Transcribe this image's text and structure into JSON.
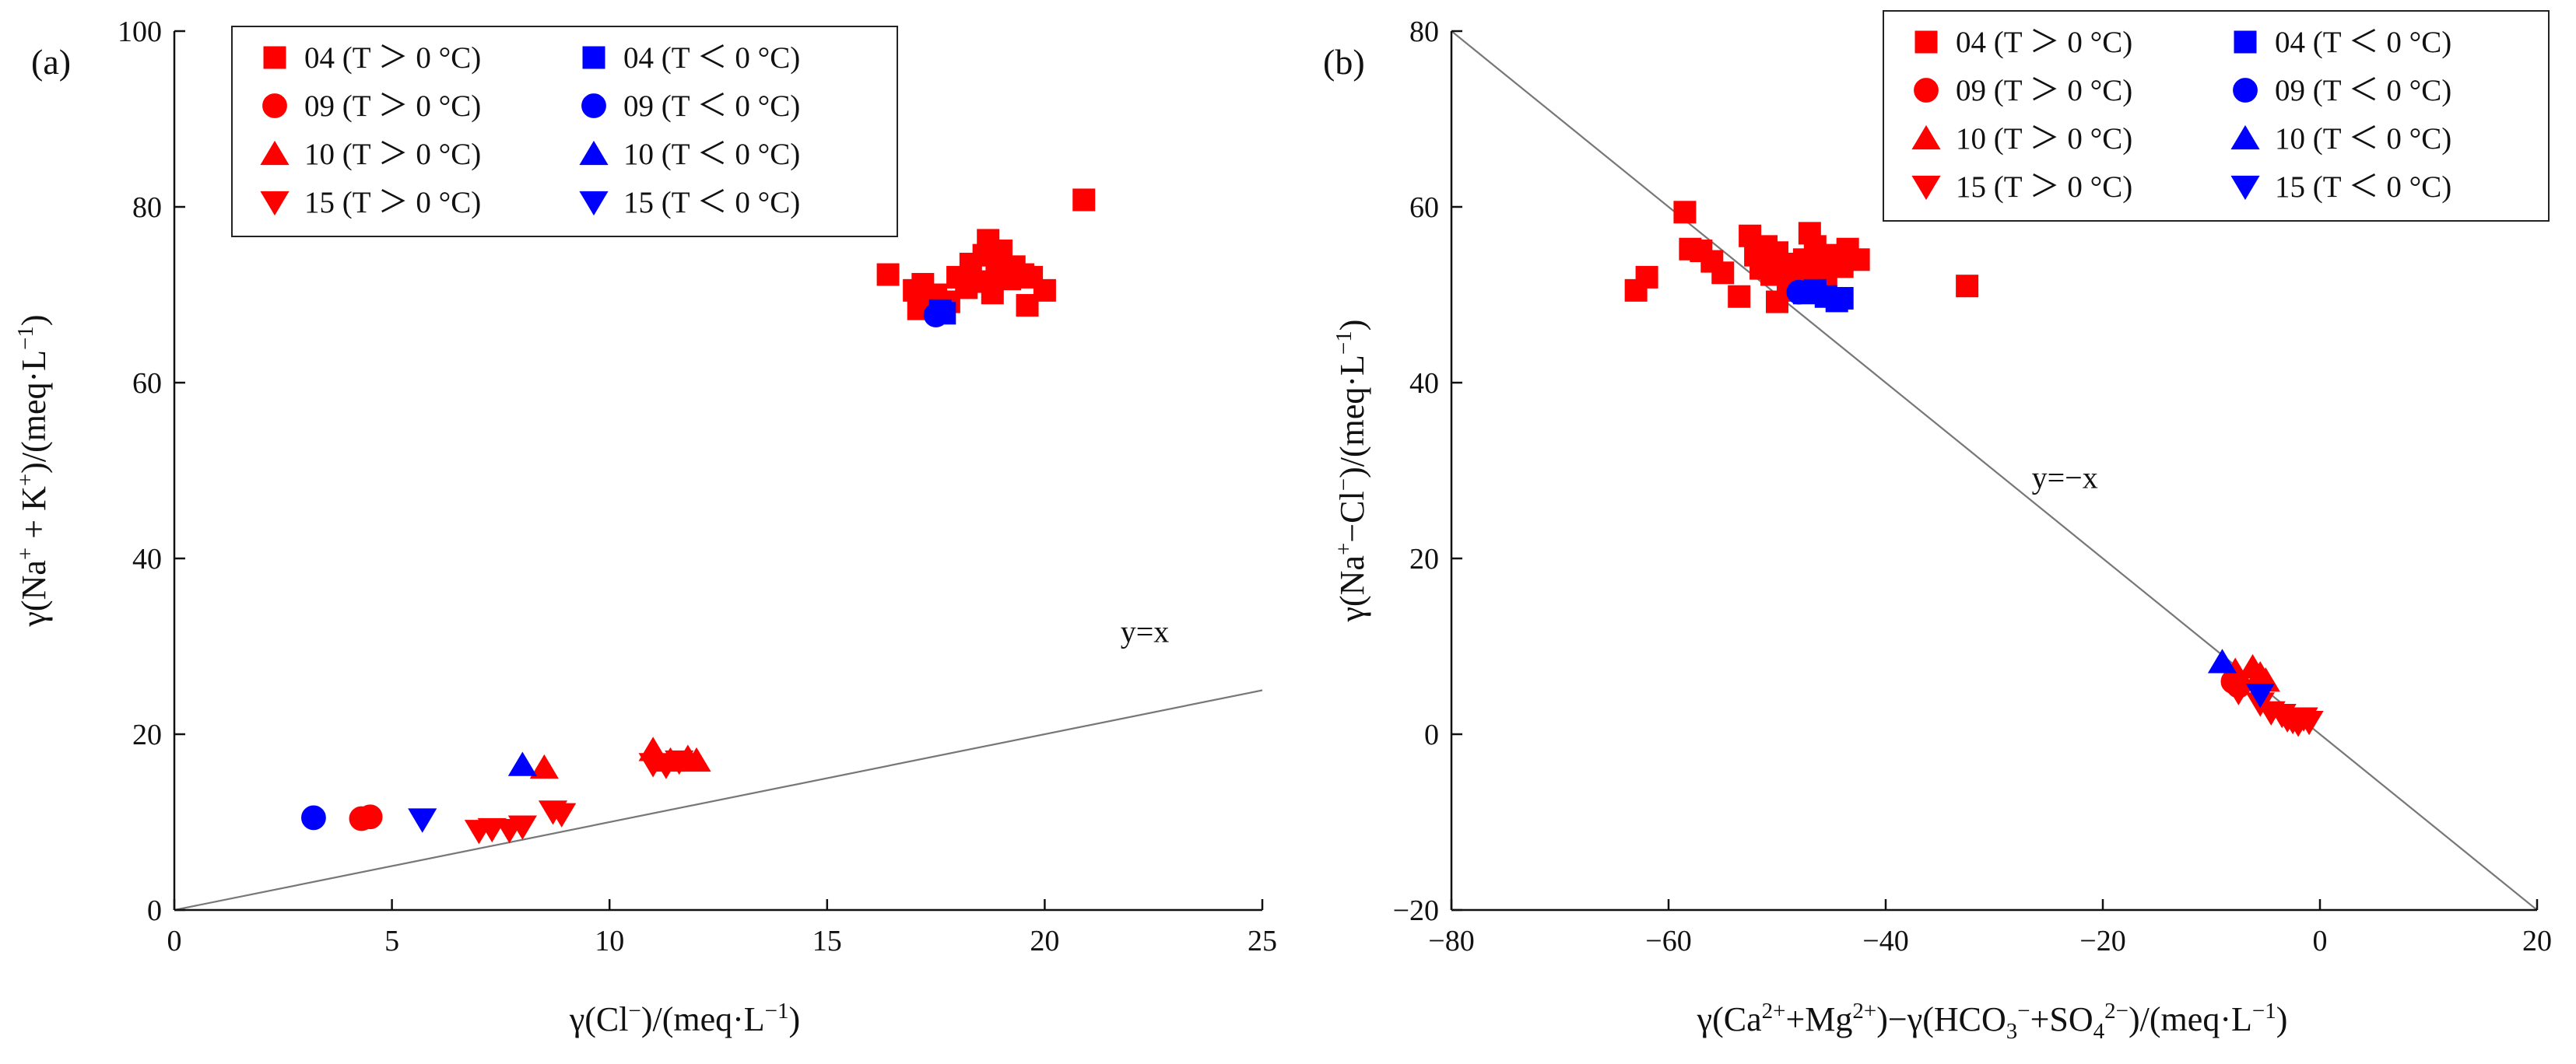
{
  "figure": {
    "panels": [
      "(a)",
      "(b)"
    ]
  },
  "legend": {
    "entries": [
      {
        "id": "04w",
        "label": "04 (T ＞ 0 °C)",
        "color": "#ff0000",
        "marker": "square"
      },
      {
        "id": "04c",
        "label": "04 (T ＜ 0 °C)",
        "color": "#0000ff",
        "marker": "square"
      },
      {
        "id": "09w",
        "label": "09 (T ＞ 0 °C)",
        "color": "#ff0000",
        "marker": "circle"
      },
      {
        "id": "09c",
        "label": "09 (T ＜ 0 °C)",
        "color": "#0000ff",
        "marker": "circle"
      },
      {
        "id": "10w",
        "label": "10 (T ＞ 0 °C)",
        "color": "#ff0000",
        "marker": "triangle-up"
      },
      {
        "id": "10c",
        "label": "10 (T ＜ 0 °C)",
        "color": "#0000ff",
        "marker": "triangle-up"
      },
      {
        "id": "15w",
        "label": "15 (T ＞ 0 °C)",
        "color": "#ff0000",
        "marker": "triangle-down"
      },
      {
        "id": "15c",
        "label": "15 (T ＜ 0 °C)",
        "color": "#0000ff",
        "marker": "triangle-down"
      }
    ]
  },
  "chart_data": [
    {
      "type": "scatter",
      "panel": "(a)",
      "title": "",
      "xlabel": {
        "main": "γ(Cl",
        "sup": "−",
        "tail": ")/(meq·L",
        "sup2": "−1",
        "end": ")"
      },
      "ylabel": "γ(Na⁺ + K⁺)/(meq·L⁻¹)",
      "xlim": [
        0,
        25
      ],
      "ylim": [
        0,
        100
      ],
      "xticks": [
        0,
        5,
        10,
        15,
        20,
        25
      ],
      "yticks": [
        0,
        20,
        40,
        60,
        80,
        100
      ],
      "reference_line": {
        "label": "y=x",
        "slope": 1,
        "intercept": 0,
        "label_at": [
          22.3,
          30.5
        ]
      },
      "series": [
        {
          "id": "04w",
          "points": [
            [
              16.4,
              72.3
            ],
            [
              17.0,
              70.5
            ],
            [
              17.1,
              68.4
            ],
            [
              17.2,
              71.2
            ],
            [
              17.5,
              70.0
            ],
            [
              17.8,
              69.2
            ],
            [
              18.0,
              72.0
            ],
            [
              18.2,
              70.8
            ],
            [
              18.3,
              73.5
            ],
            [
              18.5,
              71.5
            ],
            [
              18.6,
              74.5
            ],
            [
              18.7,
              76.2
            ],
            [
              18.8,
              70.2
            ],
            [
              18.9,
              72.6
            ],
            [
              19.0,
              75.0
            ],
            [
              19.2,
              71.8
            ],
            [
              19.3,
              73.2
            ],
            [
              19.5,
              72.3
            ],
            [
              19.6,
              68.8
            ],
            [
              19.7,
              72.0
            ],
            [
              20.0,
              70.5
            ],
            [
              20.9,
              80.8
            ]
          ]
        },
        {
          "id": "04c",
          "points": [
            [
              17.6,
              68.2
            ],
            [
              17.7,
              67.9
            ]
          ]
        },
        {
          "id": "09w",
          "points": [
            [
              4.3,
              10.4
            ],
            [
              4.5,
              10.6
            ]
          ]
        },
        {
          "id": "09c",
          "points": [
            [
              3.2,
              10.5
            ],
            [
              17.5,
              67.7
            ]
          ]
        },
        {
          "id": "10w",
          "points": [
            [
              8.5,
              16.2
            ],
            [
              11.0,
              18.2
            ],
            [
              11.4,
              17.0
            ],
            [
              11.8,
              17.3
            ],
            [
              12.0,
              17.0
            ]
          ]
        },
        {
          "id": "10c",
          "points": [
            [
              8.0,
              16.5
            ]
          ]
        },
        {
          "id": "15w",
          "points": [
            [
              7.0,
              9.0
            ],
            [
              7.3,
              9.2
            ],
            [
              7.7,
              9.1
            ],
            [
              8.0,
              9.5
            ],
            [
              8.7,
              11.2
            ],
            [
              8.9,
              10.9
            ],
            [
              11.0,
              16.6
            ],
            [
              11.3,
              16.4
            ],
            [
              11.6,
              16.9
            ]
          ]
        },
        {
          "id": "15c",
          "points": [
            [
              5.7,
              10.3
            ]
          ]
        }
      ]
    },
    {
      "type": "scatter",
      "panel": "(b)",
      "title": "",
      "xlabel": {
        "a": "γ(Ca",
        "asup": "2+",
        "b": "+Mg",
        "bsup": "2+",
        "c": ")−γ(HCO",
        "csub": "3",
        "csup": "−",
        "d": "+SO",
        "dsub": "4",
        "dsup": "2−",
        "e": ")/(meq·L",
        "esup": "−1",
        "f": ")"
      },
      "ylabel": "γ(Na⁺−Cl⁻)/(meq·L⁻¹)",
      "xlim": [
        -80,
        20
      ],
      "ylim": [
        -20,
        80
      ],
      "xticks": [
        -80,
        -60,
        -40,
        -20,
        0,
        20
      ],
      "yticks": [
        -20,
        0,
        20,
        40,
        60,
        80
      ],
      "reference_line": {
        "label": "y=−x",
        "slope": -1,
        "intercept": 0,
        "label_at": [
          -23.5,
          28
        ]
      },
      "series": [
        {
          "id": "04w",
          "points": [
            [
              -63,
              50.5
            ],
            [
              -62,
              52.0
            ],
            [
              -58.5,
              59.4
            ],
            [
              -58,
              55.2
            ],
            [
              -57,
              55.0
            ],
            [
              -56,
              53.8
            ],
            [
              -55,
              52.5
            ],
            [
              -53.5,
              49.8
            ],
            [
              -52.5,
              56.7
            ],
            [
              -52,
              54.5
            ],
            [
              -51.5,
              53.0
            ],
            [
              -51,
              55.5
            ],
            [
              -50.5,
              52.3
            ],
            [
              -50,
              54.8
            ],
            [
              -49.5,
              53.5
            ],
            [
              -49,
              51.5
            ],
            [
              -48.5,
              50.5
            ],
            [
              -48,
              52.8
            ],
            [
              -47.5,
              54.0
            ],
            [
              -47,
              57.0
            ],
            [
              -46.5,
              55.5
            ],
            [
              -46,
              53.0
            ],
            [
              -45.5,
              51.7
            ],
            [
              -45,
              54.5
            ],
            [
              -44,
              53.2
            ],
            [
              -43.5,
              55.2
            ],
            [
              -42.5,
              54.0
            ],
            [
              -32.5,
              51.0
            ],
            [
              -50,
              49.2
            ]
          ]
        },
        {
          "id": "04c",
          "points": [
            [
              -47.5,
              50.2
            ],
            [
              -46.5,
              50.5
            ],
            [
              -45.5,
              49.8
            ],
            [
              -44.5,
              49.3
            ],
            [
              -44,
              49.6
            ]
          ]
        },
        {
          "id": "09w",
          "points": [
            [
              -8.0,
              6.0
            ],
            [
              -7.5,
              5.5
            ]
          ]
        },
        {
          "id": "09c",
          "points": [
            [
              -48,
              50.3
            ]
          ]
        },
        {
          "id": "10w",
          "points": [
            [
              -7.8,
              7.2
            ],
            [
              -6.2,
              7.6
            ],
            [
              -5.5,
              6.8
            ],
            [
              -5.0,
              6.1
            ]
          ]
        },
        {
          "id": "10c",
          "points": [
            [
              -9.0,
              8.2
            ]
          ]
        },
        {
          "id": "15w",
          "points": [
            [
              -7.5,
              4.8
            ],
            [
              -5.5,
              3.5
            ],
            [
              -4.5,
              2.5
            ],
            [
              -3.5,
              2.2
            ],
            [
              -3.0,
              1.7
            ],
            [
              -2.5,
              1.5
            ],
            [
              -2.0,
              1.2
            ],
            [
              -1.5,
              1.8
            ],
            [
              -1.0,
              1.4
            ]
          ]
        },
        {
          "id": "15c",
          "points": [
            [
              -5.5,
              4.5
            ]
          ]
        }
      ]
    }
  ]
}
